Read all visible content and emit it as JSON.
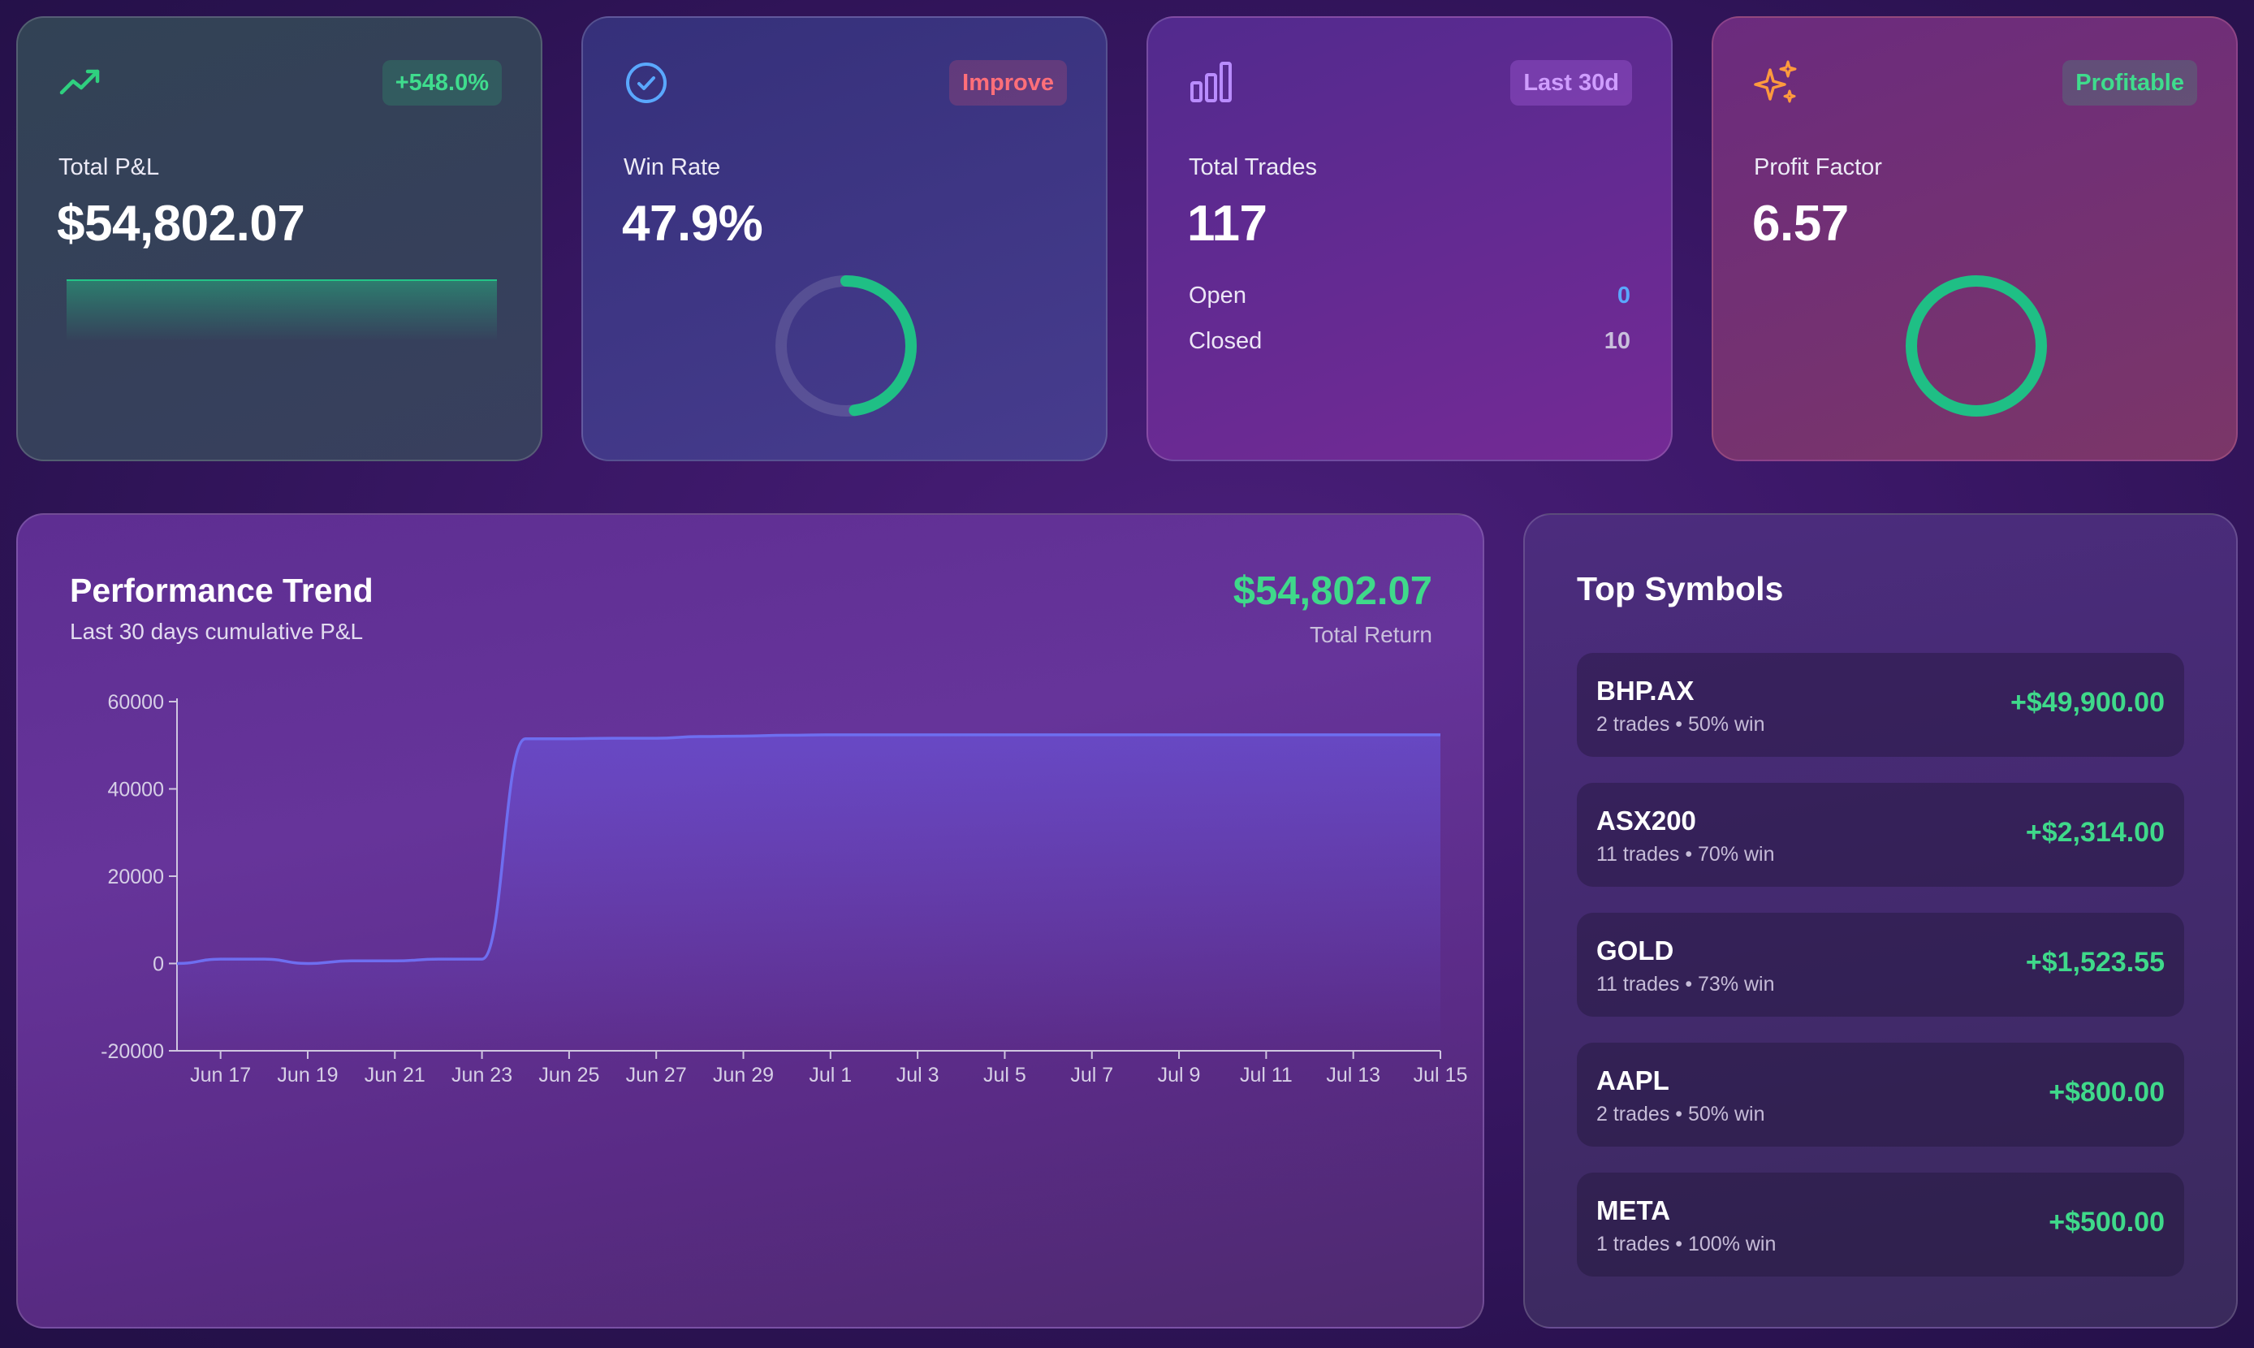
{
  "stats": {
    "pnl": {
      "label": "Total P&L",
      "value": "$54,802.07",
      "badge": "+548.0%",
      "icon": "trending-up-icon",
      "color": "#2fd07f"
    },
    "win_rate": {
      "label": "Win Rate",
      "value": "47.9%",
      "badge": "Improve",
      "icon": "check-circle-icon",
      "percent": 47.9,
      "color": "#1fbf85"
    },
    "trades": {
      "label": "Total Trades",
      "value": "117",
      "badge": "Last 30d",
      "icon": "bar-chart-icon",
      "open_label": "Open",
      "open_value": "0",
      "closed_label": "Closed",
      "closed_value": "10"
    },
    "profit_factor": {
      "label": "Profit Factor",
      "value": "6.57",
      "badge": "Profitable",
      "icon": "sparkles-icon",
      "color": "#1fbf85"
    }
  },
  "performance": {
    "title": "Performance Trend",
    "subtitle": "Last 30 days cumulative P&L",
    "total": "$54,802.07",
    "total_label": "Total Return"
  },
  "chart_data": {
    "type": "area",
    "title": "Performance Trend",
    "subtitle": "Last 30 days cumulative P&L",
    "xlabel": "",
    "ylabel": "",
    "ylim": [
      -20000,
      60000
    ],
    "yticks": [
      "60000",
      "40000",
      "20000",
      "0",
      "-20000"
    ],
    "ytick_values": [
      60000,
      40000,
      20000,
      0,
      -20000
    ],
    "xticks": [
      "Jun 17",
      "Jun 19",
      "Jun 21",
      "Jun 23",
      "Jun 25",
      "Jun 27",
      "Jun 29",
      "Jul 1",
      "Jul 3",
      "Jul 5",
      "Jul 7",
      "Jul 9",
      "Jul 11",
      "Jul 13",
      "Jul 15"
    ],
    "x": [
      "Jun 16",
      "Jun 17",
      "Jun 18",
      "Jun 19",
      "Jun 20",
      "Jun 21",
      "Jun 22",
      "Jun 23",
      "Jun 24",
      "Jun 25",
      "Jun 26",
      "Jun 27",
      "Jun 28",
      "Jun 29",
      "Jun 30",
      "Jul 1",
      "Jul 2",
      "Jul 3",
      "Jul 4",
      "Jul 5",
      "Jul 6",
      "Jul 7",
      "Jul 8",
      "Jul 9",
      "Jul 10",
      "Jul 11",
      "Jul 12",
      "Jul 13",
      "Jul 14",
      "Jul 15"
    ],
    "series": [
      {
        "values": [
          0,
          1000,
          1000,
          0,
          600,
          600,
          1000,
          1000,
          51500,
          51500,
          51600,
          51600,
          52000,
          52100,
          52300,
          52400,
          52400,
          52400,
          52400,
          52400,
          52400,
          52400,
          52400,
          52400,
          52400,
          52400,
          52400,
          52400,
          52400,
          52400
        ],
        "color": "#6e6ef0"
      }
    ],
    "grid": false
  },
  "symbols": {
    "title": "Top Symbols",
    "items": [
      {
        "name": "BHP.AX",
        "meta": "2 trades • 50% win",
        "pnl": "+$49,900.00"
      },
      {
        "name": "ASX200",
        "meta": "11 trades • 70% win",
        "pnl": "+$2,314.00"
      },
      {
        "name": "GOLD",
        "meta": "11 trades • 73% win",
        "pnl": "+$1,523.55"
      },
      {
        "name": "AAPL",
        "meta": "2 trades • 50% win",
        "pnl": "+$800.00"
      },
      {
        "name": "META",
        "meta": "1 trades • 100% win",
        "pnl": "+$500.00"
      }
    ]
  }
}
